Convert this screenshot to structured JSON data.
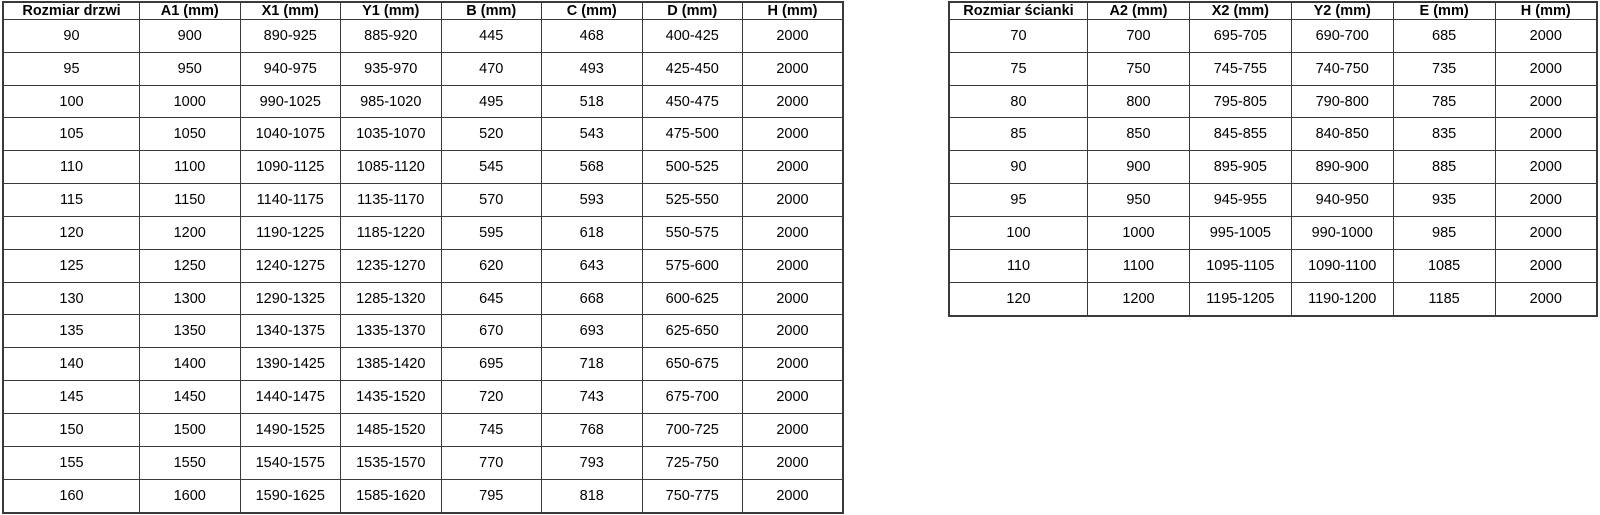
{
  "colors": {
    "border": "#3a3a3a",
    "background": "#ffffff",
    "text": "#000000"
  },
  "tables": [
    {
      "id": "door",
      "headers": [
        "Rozmiar drzwi",
        "A1 (mm)",
        "X1 (mm)",
        "Y1 (mm)",
        "B (mm)",
        "C (mm)",
        "D (mm)",
        "H (mm)"
      ],
      "rows": [
        [
          "90",
          "900",
          "890-925",
          "885-920",
          "445",
          "468",
          "400-425",
          "2000"
        ],
        [
          "95",
          "950",
          "940-975",
          "935-970",
          "470",
          "493",
          "425-450",
          "2000"
        ],
        [
          "100",
          "1000",
          "990-1025",
          "985-1020",
          "495",
          "518",
          "450-475",
          "2000"
        ],
        [
          "105",
          "1050",
          "1040-1075",
          "1035-1070",
          "520",
          "543",
          "475-500",
          "2000"
        ],
        [
          "110",
          "1100",
          "1090-1125",
          "1085-1120",
          "545",
          "568",
          "500-525",
          "2000"
        ],
        [
          "115",
          "1150",
          "1140-1175",
          "1135-1170",
          "570",
          "593",
          "525-550",
          "2000"
        ],
        [
          "120",
          "1200",
          "1190-1225",
          "1185-1220",
          "595",
          "618",
          "550-575",
          "2000"
        ],
        [
          "125",
          "1250",
          "1240-1275",
          "1235-1270",
          "620",
          "643",
          "575-600",
          "2000"
        ],
        [
          "130",
          "1300",
          "1290-1325",
          "1285-1320",
          "645",
          "668",
          "600-625",
          "2000"
        ],
        [
          "135",
          "1350",
          "1340-1375",
          "1335-1370",
          "670",
          "693",
          "625-650",
          "2000"
        ],
        [
          "140",
          "1400",
          "1390-1425",
          "1385-1420",
          "695",
          "718",
          "650-675",
          "2000"
        ],
        [
          "145",
          "1450",
          "1440-1475",
          "1435-1520",
          "720",
          "743",
          "675-700",
          "2000"
        ],
        [
          "150",
          "1500",
          "1490-1525",
          "1485-1520",
          "745",
          "768",
          "700-725",
          "2000"
        ],
        [
          "155",
          "1550",
          "1540-1575",
          "1535-1570",
          "770",
          "793",
          "725-750",
          "2000"
        ],
        [
          "160",
          "1600",
          "1590-1625",
          "1585-1620",
          "795",
          "818",
          "750-775",
          "2000"
        ]
      ]
    },
    {
      "id": "wall",
      "headers": [
        "Rozmiar ścianki",
        "A2 (mm)",
        "X2 (mm)",
        "Y2 (mm)",
        "E (mm)",
        "H (mm)"
      ],
      "rows": [
        [
          "70",
          "700",
          "695-705",
          "690-700",
          "685",
          "2000"
        ],
        [
          "75",
          "750",
          "745-755",
          "740-750",
          "735",
          "2000"
        ],
        [
          "80",
          "800",
          "795-805",
          "790-800",
          "785",
          "2000"
        ],
        [
          "85",
          "850",
          "845-855",
          "840-850",
          "835",
          "2000"
        ],
        [
          "90",
          "900",
          "895-905",
          "890-900",
          "885",
          "2000"
        ],
        [
          "95",
          "950",
          "945-955",
          "940-950",
          "935",
          "2000"
        ],
        [
          "100",
          "1000",
          "995-1005",
          "990-1000",
          "985",
          "2000"
        ],
        [
          "110",
          "1100",
          "1095-1105",
          "1090-1100",
          "1085",
          "2000"
        ],
        [
          "120",
          "1200",
          "1195-1205",
          "1190-1200",
          "1185",
          "2000"
        ]
      ]
    }
  ]
}
